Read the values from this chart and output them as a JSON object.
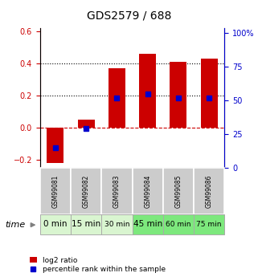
{
  "title": "GDS2579 / 688",
  "categories": [
    "GSM99081",
    "GSM99082",
    "GSM99083",
    "GSM99084",
    "GSM99085",
    "GSM99086"
  ],
  "time_labels": [
    "0 min",
    "15 min",
    "30 min",
    "45 min",
    "60 min",
    "75 min"
  ],
  "time_colors": [
    "#d9f5d0",
    "#d9f5d0",
    "#d9f5d0",
    "#7de87d",
    "#7de87d",
    "#7de87d"
  ],
  "log2_ratio": [
    -0.22,
    0.05,
    0.37,
    0.46,
    0.41,
    0.43
  ],
  "percentile_rank": [
    15,
    29,
    52,
    55,
    52,
    52
  ],
  "bar_color": "#cc0000",
  "dot_color": "#0000cc",
  "ylim_left": [
    -0.25,
    0.625
  ],
  "ylim_right": [
    0,
    104.17
  ],
  "yticks_left": [
    -0.2,
    0.0,
    0.2,
    0.4,
    0.6
  ],
  "yticks_right": [
    0,
    25,
    50,
    75,
    100
  ],
  "yticklabels_right": [
    "0",
    "25",
    "50",
    "75",
    "100%"
  ],
  "dotted_line_y": [
    0.2,
    0.4
  ],
  "zero_dashed_color": "#cc0000",
  "sample_bg": "#cccccc",
  "time_arrow_label": "time"
}
